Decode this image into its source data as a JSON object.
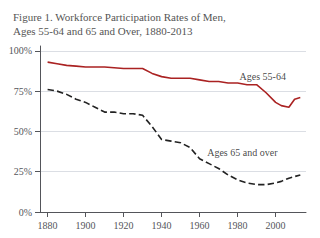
{
  "chart_data": {
    "type": "line",
    "title": "Figure 1. Workforce Participation Rates of Men,\nAges 55-64 and 65 and Over, 1880-2013",
    "x": [
      1880,
      1885,
      1890,
      1895,
      1900,
      1905,
      1910,
      1915,
      1920,
      1925,
      1930,
      1935,
      1940,
      1945,
      1950,
      1955,
      1960,
      1965,
      1970,
      1975,
      1980,
      1985,
      1990,
      1995,
      2000,
      2003,
      2007,
      2010,
      2013
    ],
    "series": [
      {
        "name": "Ages 55-64",
        "color": "#aa2222",
        "line_style": "solid",
        "values": [
          93,
          92,
          91,
          90.5,
          90,
          90,
          90,
          89.5,
          89,
          89,
          89,
          86,
          84,
          83,
          83,
          83,
          82,
          81,
          81,
          80,
          80,
          79,
          79,
          74,
          68,
          66,
          65,
          70,
          71
        ]
      },
      {
        "name": "Ages 65 and over",
        "color": "#222222",
        "line_style": "dashed",
        "values": [
          76,
          75,
          73,
          70,
          68,
          65,
          62,
          62,
          61,
          61,
          60,
          53,
          45,
          44,
          43,
          40,
          33,
          30,
          27,
          23,
          20,
          18,
          17,
          17,
          18,
          19,
          21,
          22,
          23
        ]
      }
    ],
    "annotations": [
      {
        "text": "Ages 55-64",
        "x": 1981,
        "y": 84
      },
      {
        "text": "Ages 65 and over",
        "x": 1964,
        "y": 37
      }
    ],
    "xlim": [
      1876,
      2016
    ],
    "xticks": [
      1880,
      1900,
      1920,
      1940,
      1960,
      1980,
      2000
    ],
    "ylim": [
      0,
      103
    ],
    "yticks": [
      {
        "value": 0,
        "label": "0%"
      },
      {
        "value": 25,
        "label": "25%"
      },
      {
        "value": 50,
        "label": "50%"
      },
      {
        "value": 75,
        "label": "75%"
      },
      {
        "value": 100,
        "label": "100%"
      }
    ],
    "grid": true
  }
}
